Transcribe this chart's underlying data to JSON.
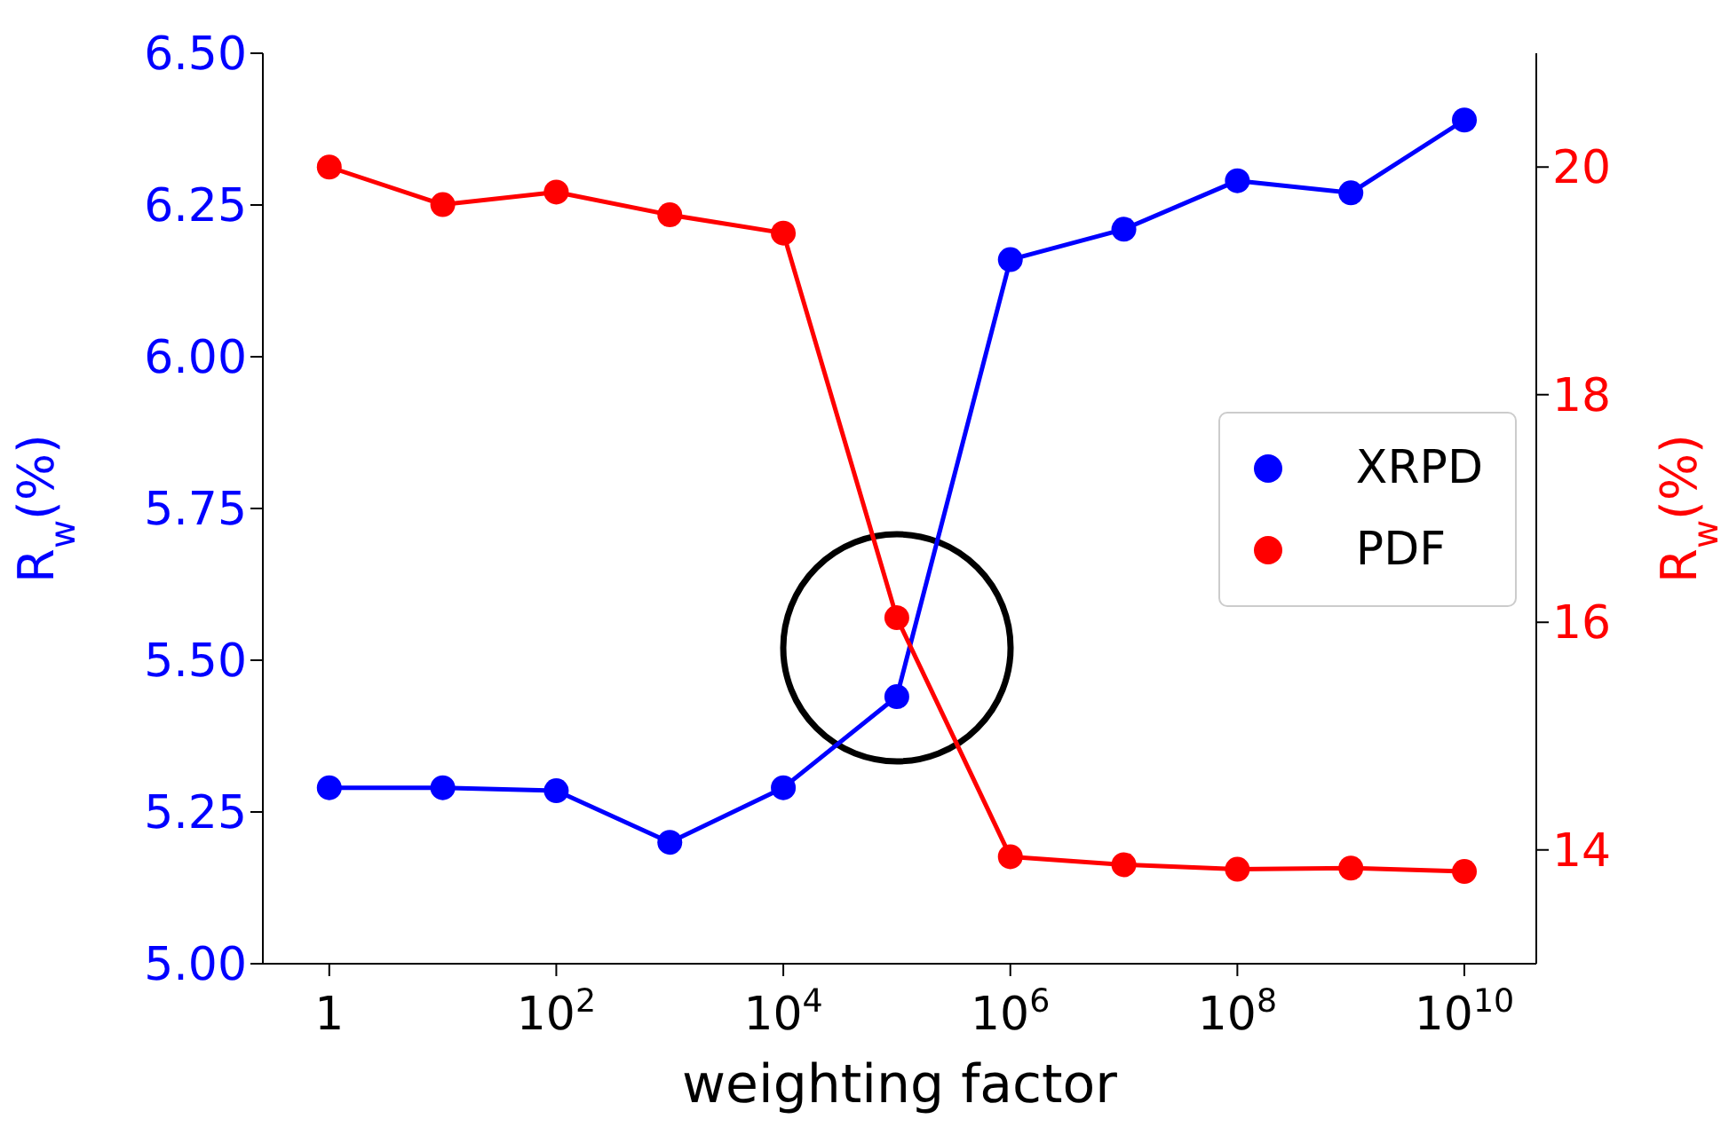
{
  "chart_data": {
    "type": "line",
    "xlabel": "weighting factor",
    "ylabel": "R$_{w}$(%)",
    "y2label": "R$_{w}$(%)",
    "x": [
      1,
      10,
      100,
      1000,
      10000,
      100000,
      1000000,
      10000000,
      100000000,
      1000000000,
      10000000000
    ],
    "log": "x",
    "xlim": [
      0.26,
      43000000000
    ],
    "xticks": [
      {
        "value": 1,
        "label": "1"
      },
      {
        "value": 100,
        "label": "10$^{2}$"
      },
      {
        "value": 10000,
        "label": "10$^{4}$"
      },
      {
        "value": 1000000,
        "label": "10$^{6}$"
      },
      {
        "value": 100000000,
        "label": "10$^{8}$"
      },
      {
        "value": 10000000000,
        "label": "10$^{10}$"
      }
    ],
    "ylim": [
      5,
      6.5
    ],
    "yticks": [
      {
        "value": 5,
        "label": "5.00"
      },
      {
        "value": 5.25,
        "label": "5.25"
      },
      {
        "value": 5.5,
        "label": "5.50"
      },
      {
        "value": 5.75,
        "label": "5.75"
      },
      {
        "value": 6,
        "label": "6.00"
      },
      {
        "value": 6.25,
        "label": "6.25"
      },
      {
        "value": 6.5,
        "label": "6.50"
      }
    ],
    "y2lim": [
      13,
      21
    ],
    "y2ticks": [
      14,
      16,
      18,
      20
    ],
    "series": [
      {
        "name": "XRPD",
        "color": "#0000ff",
        "values": [
          5.29,
          5.29,
          5.285,
          5.2,
          5.29,
          5.44,
          6.16,
          6.21,
          6.29,
          6.27,
          6.39
        ]
      },
      {
        "name": "PDF",
        "color": "#ff0000",
        "axis": "y2",
        "values": [
          20.0,
          19.67,
          19.78,
          19.58,
          19.42,
          16.04,
          13.94,
          13.87,
          13.83,
          13.84,
          13.81
        ]
      }
    ],
    "marker": "circle",
    "line_style": "solid",
    "grid": false,
    "legend": "center right"
  }
}
